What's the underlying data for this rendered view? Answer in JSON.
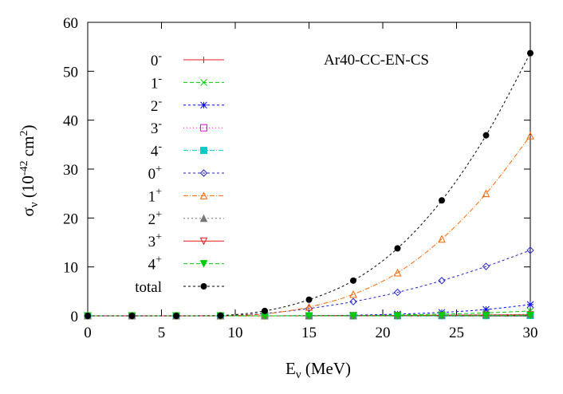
{
  "chart_data": {
    "type": "line",
    "title": "",
    "annotation": "Ar40-CC-EN-CS",
    "xlabel": {
      "main": "E",
      "sub": "ν",
      "unit": " (MeV)"
    },
    "ylabel": {
      "main": "σ",
      "sub": "ν",
      "unit_pre": " (10",
      "unit_exp": "-42",
      "unit_mid": " cm",
      "unit_exp2": "2",
      "unit_post": ")"
    },
    "xlim": [
      0,
      30
    ],
    "ylim": [
      0,
      60
    ],
    "xticks": [
      0,
      5,
      10,
      15,
      20,
      25,
      30
    ],
    "yticks": [
      0,
      10,
      20,
      30,
      40,
      50,
      60
    ],
    "grid": false,
    "legend_position": "top-left",
    "x": [
      0,
      3,
      6,
      9,
      12,
      15,
      18,
      21,
      24,
      27,
      30
    ],
    "series": [
      {
        "name": "0",
        "sup": "-",
        "color": "#e41a1c",
        "dash": "",
        "marker": "plus",
        "values": [
          0,
          0,
          0,
          0,
          0,
          0,
          0.05,
          0.08,
          0.12,
          0.17,
          0.22
        ]
      },
      {
        "name": "1",
        "sup": "-",
        "color": "#00cc00",
        "dash": "5,3",
        "marker": "x",
        "values": [
          0,
          0,
          0,
          0,
          0,
          0.03,
          0.08,
          0.18,
          0.35,
          0.6,
          1.0
        ]
      },
      {
        "name": "2",
        "sup": "-",
        "color": "#0000ff",
        "dash": "3,3",
        "marker": "star",
        "values": [
          0,
          0,
          0,
          0,
          0,
          0.05,
          0.12,
          0.35,
          0.7,
          1.3,
          2.3
        ]
      },
      {
        "name": "3",
        "sup": "-",
        "color": "#ff00ff",
        "dash": "1,3",
        "marker": "square",
        "values": [
          0,
          0,
          0,
          0,
          0,
          0,
          0.02,
          0.04,
          0.08,
          0.13,
          0.2
        ]
      },
      {
        "name": "4",
        "sup": "-",
        "color": "#00cccc",
        "dash": "6,2,1,2",
        "marker": "filled-square",
        "values": [
          0,
          0,
          0,
          0,
          0,
          0,
          0.01,
          0.02,
          0.03,
          0.05,
          0.08
        ]
      },
      {
        "name": "0",
        "sup": "+",
        "color": "#2222cc",
        "dash": "3,3",
        "marker": "diamond",
        "values": [
          0,
          0,
          0,
          0,
          0.5,
          1.5,
          2.9,
          4.8,
          7.2,
          10.1,
          13.4
        ]
      },
      {
        "name": "1",
        "sup": "+",
        "color": "#ff6600",
        "dash": "6,2,1,2",
        "marker": "triangle",
        "values": [
          0,
          0,
          0,
          0,
          0.4,
          1.8,
          4.4,
          8.8,
          15.7,
          25.0,
          36.8
        ]
      },
      {
        "name": "2",
        "sup": "+",
        "color": "#777777",
        "dash": "2,3",
        "marker": "filled-triangle",
        "values": [
          0,
          0,
          0,
          0,
          0,
          0.02,
          0.05,
          0.09,
          0.15,
          0.22,
          0.3
        ]
      },
      {
        "name": "3",
        "sup": "+",
        "color": "#e41a1c",
        "dash": "",
        "marker": "inv-triangle",
        "values": [
          0,
          0,
          0,
          0,
          0,
          0.01,
          0.02,
          0.05,
          0.08,
          0.12,
          0.17
        ]
      },
      {
        "name": "4",
        "sup": "+",
        "color": "#00cc00",
        "dash": "5,3",
        "marker": "filled-inv-triangle",
        "values": [
          0,
          0,
          0,
          0,
          0,
          0.01,
          0.02,
          0.03,
          0.05,
          0.07,
          0.1
        ]
      },
      {
        "name": "total",
        "sup": "",
        "color": "#000000",
        "dash": "3,3",
        "marker": "filled-circle",
        "values": [
          0,
          0,
          0,
          0.05,
          1.0,
          3.3,
          7.2,
          13.8,
          23.6,
          36.9,
          53.7
        ]
      }
    ]
  }
}
